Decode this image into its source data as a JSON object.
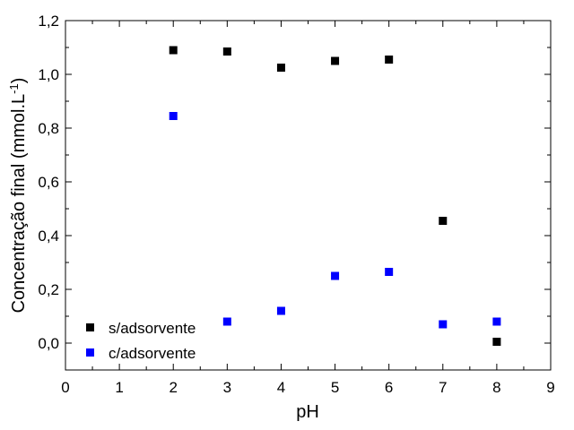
{
  "chart_data": {
    "type": "scatter",
    "xlabel": "pH",
    "ylabel_main": "Concentração final (mmol.L",
    "ylabel_sup": "-1",
    "ylabel_close": ")",
    "xlim": [
      0,
      9
    ],
    "ylim": [
      -0.1,
      1.2
    ],
    "xticks": [
      0,
      1,
      2,
      3,
      4,
      5,
      6,
      7,
      8,
      9
    ],
    "xtick_labels": [
      "0",
      "1",
      "2",
      "3",
      "4",
      "5",
      "6",
      "7",
      "8",
      "9"
    ],
    "yticks": [
      0.0,
      0.2,
      0.4,
      0.6,
      0.8,
      1.0,
      1.2
    ],
    "ytick_labels": [
      "0,0",
      "0,2",
      "0,4",
      "0,6",
      "0,8",
      "1,0",
      "1,2"
    ],
    "grid": false,
    "legend_position": "bottom-left",
    "series": [
      {
        "name": "s/adsorvente",
        "color": "#000000",
        "marker": "square",
        "x": [
          2,
          3,
          4,
          5,
          6,
          7,
          8
        ],
        "y": [
          1.09,
          1.085,
          1.025,
          1.05,
          1.055,
          0.455,
          0.005
        ]
      },
      {
        "name": "c/adsorvente",
        "color": "#0000ff",
        "marker": "square",
        "x": [
          2,
          3,
          4,
          5,
          6,
          7,
          8
        ],
        "y": [
          0.845,
          0.08,
          0.12,
          0.25,
          0.265,
          0.07,
          0.08
        ]
      }
    ]
  }
}
